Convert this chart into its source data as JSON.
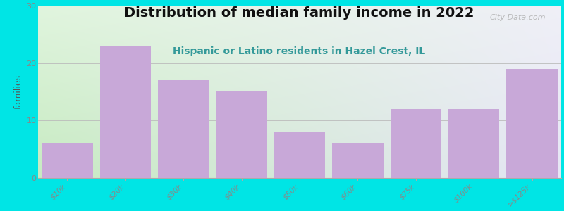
{
  "title": "Distribution of median family income in 2022",
  "subtitle": "Hispanic or Latino residents in Hazel Crest, IL",
  "categories": [
    "$10k",
    "$20k",
    "$30k",
    "$40k",
    "$50k",
    "$60k",
    "$75k",
    "$100k",
    ">$125k"
  ],
  "values": [
    6,
    23,
    17,
    15,
    8,
    6,
    12,
    12,
    19
  ],
  "bar_color": "#c8a8d8",
  "background_color": "#00e5e5",
  "plot_bg_color_topleft": "#e8f4e8",
  "plot_bg_color_topright": "#f0f0f8",
  "plot_bg_color_bottomleft": "#c8e8c0",
  "plot_bg_color_bottomright": "#e8e8f8",
  "ylabel": "families",
  "ylim": [
    0,
    30
  ],
  "yticks": [
    0,
    10,
    20,
    30
  ],
  "title_fontsize": 14,
  "subtitle_fontsize": 10,
  "title_color": "#111111",
  "subtitle_color": "#339999",
  "watermark": "City-Data.com",
  "tick_label_color": "#888888",
  "tick_label_fontsize": 7.5
}
